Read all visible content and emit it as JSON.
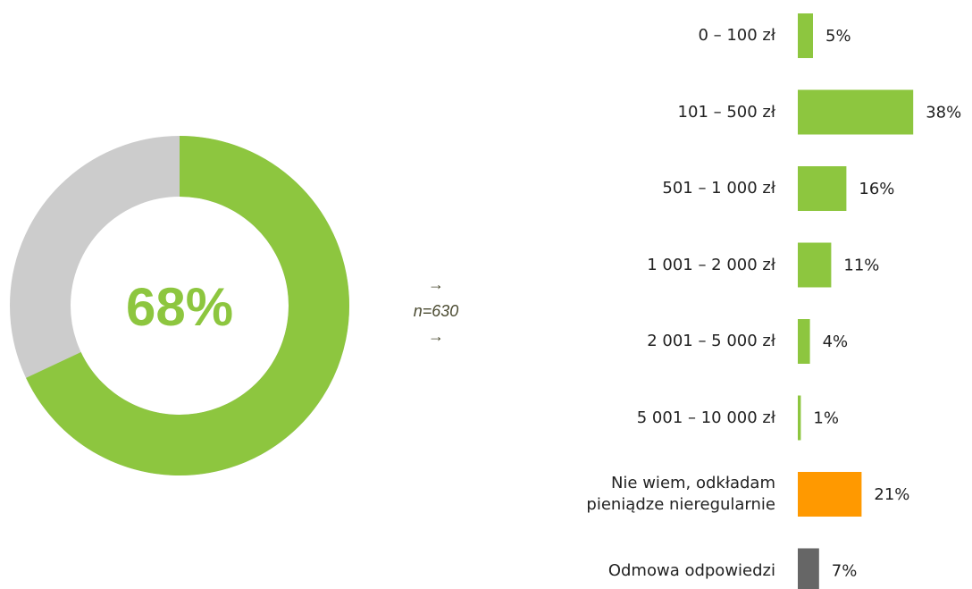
{
  "chart_data": [
    {
      "type": "donut",
      "value": 68,
      "value_label": "68%",
      "range": [
        0,
        100
      ],
      "color": "#8dc63f",
      "rest_color": "#cccccc",
      "annotations": [
        "→",
        "n=630",
        "→"
      ]
    },
    {
      "type": "hbar",
      "categories": [
        "0 – 100 zł",
        "101 – 500 zł",
        "501 – 1 000 zł",
        "1 001 – 2 000 zł",
        "2 001 – 5 000 zł",
        "5 001 – 10 000 zł",
        "Nie wiem, odkładam\npieniądze nieregularnie",
        "Odmowa odpowiedzi"
      ],
      "values": [
        5,
        38,
        16,
        11,
        4,
        1,
        21,
        7
      ],
      "value_labels": [
        "5%",
        "38%",
        "16%",
        "11%",
        "4%",
        "1%",
        "21%",
        "7%"
      ],
      "colors": [
        "#8dc63f",
        "#8dc63f",
        "#8dc63f",
        "#8dc63f",
        "#8dc63f",
        "#8dc63f",
        "#ff9900",
        "#666666"
      ],
      "xlim": [
        0,
        100
      ]
    }
  ]
}
